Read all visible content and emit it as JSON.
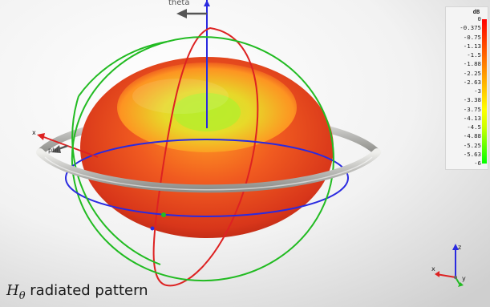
{
  "chart_data": {
    "type": "3d-radiation-pattern",
    "title": "radiated pattern",
    "title_symbol": "H",
    "title_subscript": "θ",
    "axis_labels": {
      "theta": "theta",
      "phi": "phi",
      "x": "x",
      "z": "z",
      "y": "y"
    },
    "colorbar": {
      "unit": "dB",
      "ticks": [
        "0",
        "-0.375",
        "-0.75",
        "-1.13",
        "-1.5",
        "-1.88",
        "-2.25",
        "-2.63",
        "-3",
        "-3.38",
        "-3.75",
        "-4.13",
        "-4.5",
        "-4.88",
        "-5.25",
        "-5.63",
        "-6"
      ],
      "range": [
        -6,
        0
      ],
      "colors": [
        "#ff0000",
        "#ff3300",
        "#ff6600",
        "#ff9900",
        "#ffcc00",
        "#ffff00",
        "#ccff00",
        "#66ff00",
        "#00ff00"
      ]
    },
    "pattern": {
      "shape": "toroidal",
      "max_db": 0,
      "null_direction": "z-axis",
      "colors": {
        "max": "#e83a1c",
        "mid": "#ff8a1a",
        "min": "#c6ee2a"
      }
    },
    "circles": {
      "phi_ring_color": "#2a2ae0",
      "theta_ring_color": "#22bb22",
      "elevation_ring_color": "#dd2222",
      "reference_ring_color": "#c4c4c0"
    }
  }
}
